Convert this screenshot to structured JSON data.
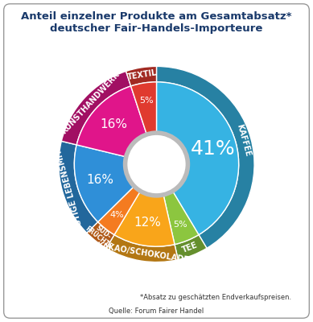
{
  "chart_data": {
    "type": "pie",
    "title": "Anteil einzelner Produkte am Gesamtabsatz* deutscher Fair-Handels-Importeure",
    "categories": [
      "KAFFEE",
      "TEE",
      "KAKAO/SCHOKOLADE",
      "SÜD-FRÜCHTE",
      "SONSTIGE LEBENSMITTEL",
      "KUNSTHANDWERK",
      "TEXTIL"
    ],
    "values": [
      41,
      5,
      12,
      4,
      16,
      16,
      5
    ],
    "value_labels": [
      "41%",
      "5%",
      "12%",
      "4%",
      "16%",
      "16%",
      "5%"
    ],
    "colors": [
      "#36b3e3",
      "#8cc63f",
      "#f9a51a",
      "#f47b20",
      "#2f8fd8",
      "#e0158a",
      "#e03a2f"
    ],
    "data_labels": true,
    "footnote": "*Absatz zu geschätzten Endverkaufspreisen.",
    "source": "Quelle: Forum Fairer Handel"
  }
}
